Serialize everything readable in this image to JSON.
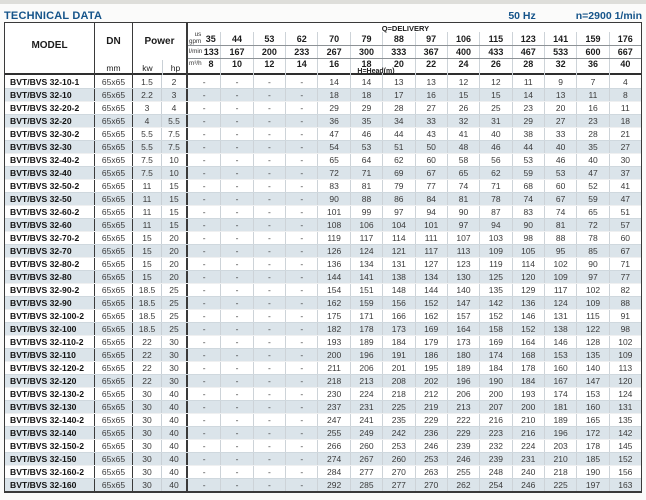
{
  "page": {
    "title": "TECHNICAL DATA",
    "frequency": "50 Hz",
    "speed": "n=2900 1/min"
  },
  "colors": {
    "accent": "#15548a",
    "row_shade": "#dbe4ea",
    "border_dark": "#3a3a3a",
    "border_light": "#cdd3d8"
  },
  "table": {
    "header": {
      "model_label": "MODEL",
      "dn_label": "DN",
      "dn_unit": "mm",
      "power_label": "Power",
      "power_units": [
        "kw",
        "hp"
      ],
      "delivery_label": "Q=DELIVERY",
      "head_label": "H=Head(m)",
      "flow_units": [
        "us\ngpm",
        "l/min",
        "m³/h"
      ],
      "gpm": [
        "35",
        "44",
        "53",
        "62",
        "70",
        "79",
        "88",
        "97",
        "106",
        "115",
        "123",
        "141",
        "159",
        "176"
      ],
      "lmin": [
        "133",
        "167",
        "200",
        "233",
        "267",
        "300",
        "333",
        "367",
        "400",
        "433",
        "467",
        "533",
        "600",
        "667"
      ],
      "m3h": [
        "8",
        "10",
        "12",
        "14",
        "16",
        "18",
        "20",
        "22",
        "24",
        "26",
        "28",
        "32",
        "36",
        "40"
      ]
    },
    "rows": [
      {
        "model": "BVT/BVS 32-10-1",
        "dn": "65x65",
        "kw": "1.5",
        "hp": "2",
        "heads": [
          "-",
          "-",
          "-",
          "-",
          "14",
          "14",
          "13",
          "13",
          "12",
          "12",
          "11",
          "9",
          "7",
          "4"
        ]
      },
      {
        "model": "BVT/BVS 32-10",
        "dn": "65x65",
        "kw": "2.2",
        "hp": "3",
        "heads": [
          "-",
          "-",
          "-",
          "-",
          "18",
          "18",
          "17",
          "16",
          "15",
          "15",
          "14",
          "13",
          "11",
          "8"
        ]
      },
      {
        "model": "BVT/BVS 32-20-2",
        "dn": "65x65",
        "kw": "3",
        "hp": "4",
        "heads": [
          "-",
          "-",
          "-",
          "-",
          "29",
          "29",
          "28",
          "27",
          "26",
          "25",
          "23",
          "20",
          "16",
          "11"
        ]
      },
      {
        "model": "BVT/BVS 32-20",
        "dn": "65x65",
        "kw": "4",
        "hp": "5.5",
        "heads": [
          "-",
          "-",
          "-",
          "-",
          "36",
          "35",
          "34",
          "33",
          "32",
          "31",
          "29",
          "27",
          "23",
          "18"
        ]
      },
      {
        "model": "BVT/BVS 32-30-2",
        "dn": "65x65",
        "kw": "5.5",
        "hp": "7.5",
        "heads": [
          "-",
          "-",
          "-",
          "-",
          "47",
          "46",
          "44",
          "43",
          "41",
          "40",
          "38",
          "33",
          "28",
          "21"
        ]
      },
      {
        "model": "BVT/BVS 32-30",
        "dn": "65x65",
        "kw": "5.5",
        "hp": "7.5",
        "heads": [
          "-",
          "-",
          "-",
          "-",
          "54",
          "53",
          "51",
          "50",
          "48",
          "46",
          "44",
          "40",
          "35",
          "27"
        ]
      },
      {
        "model": "BVT/BVS 32-40-2",
        "dn": "65x65",
        "kw": "7.5",
        "hp": "10",
        "heads": [
          "-",
          "-",
          "-",
          "-",
          "65",
          "64",
          "62",
          "60",
          "58",
          "56",
          "53",
          "46",
          "40",
          "30"
        ]
      },
      {
        "model": "BVT/BVS 32-40",
        "dn": "65x65",
        "kw": "7.5",
        "hp": "10",
        "heads": [
          "-",
          "-",
          "-",
          "-",
          "72",
          "71",
          "69",
          "67",
          "65",
          "62",
          "59",
          "53",
          "47",
          "37"
        ]
      },
      {
        "model": "BVT/BVS 32-50-2",
        "dn": "65x65",
        "kw": "11",
        "hp": "15",
        "heads": [
          "-",
          "-",
          "-",
          "-",
          "83",
          "81",
          "79",
          "77",
          "74",
          "71",
          "68",
          "60",
          "52",
          "41"
        ]
      },
      {
        "model": "BVT/BVS 32-50",
        "dn": "65x65",
        "kw": "11",
        "hp": "15",
        "heads": [
          "-",
          "-",
          "-",
          "-",
          "90",
          "88",
          "86",
          "84",
          "81",
          "78",
          "74",
          "67",
          "59",
          "47"
        ]
      },
      {
        "model": "BVT/BVS 32-60-2",
        "dn": "65x65",
        "kw": "11",
        "hp": "15",
        "heads": [
          "-",
          "-",
          "-",
          "-",
          "101",
          "99",
          "97",
          "94",
          "90",
          "87",
          "83",
          "74",
          "65",
          "51"
        ]
      },
      {
        "model": "BVT/BVS 32-60",
        "dn": "65x65",
        "kw": "11",
        "hp": "15",
        "heads": [
          "-",
          "-",
          "-",
          "-",
          "108",
          "106",
          "104",
          "101",
          "97",
          "94",
          "90",
          "81",
          "72",
          "57"
        ]
      },
      {
        "model": "BVT/BVS 32-70-2",
        "dn": "65x65",
        "kw": "15",
        "hp": "20",
        "heads": [
          "-",
          "-",
          "-",
          "-",
          "119",
          "117",
          "114",
          "111",
          "107",
          "103",
          "98",
          "88",
          "78",
          "60"
        ]
      },
      {
        "model": "BVT/BVS 32-70",
        "dn": "65x65",
        "kw": "15",
        "hp": "20",
        "heads": [
          "-",
          "-",
          "-",
          "-",
          "126",
          "124",
          "121",
          "117",
          "113",
          "109",
          "105",
          "95",
          "85",
          "67"
        ]
      },
      {
        "model": "BVT/BVS 32-80-2",
        "dn": "65x65",
        "kw": "15",
        "hp": "20",
        "heads": [
          "-",
          "-",
          "-",
          "-",
          "136",
          "134",
          "131",
          "127",
          "123",
          "119",
          "114",
          "102",
          "90",
          "71"
        ]
      },
      {
        "model": "BVT/BVS 32-80",
        "dn": "65x65",
        "kw": "15",
        "hp": "20",
        "heads": [
          "-",
          "-",
          "-",
          "-",
          "144",
          "141",
          "138",
          "134",
          "130",
          "125",
          "120",
          "109",
          "97",
          "77"
        ]
      },
      {
        "model": "BVT/BVS 32-90-2",
        "dn": "65x65",
        "kw": "18.5",
        "hp": "25",
        "heads": [
          "-",
          "-",
          "-",
          "-",
          "154",
          "151",
          "148",
          "144",
          "140",
          "135",
          "129",
          "117",
          "102",
          "82"
        ]
      },
      {
        "model": "BVT/BVS 32-90",
        "dn": "65x65",
        "kw": "18.5",
        "hp": "25",
        "heads": [
          "-",
          "-",
          "-",
          "-",
          "162",
          "159",
          "156",
          "152",
          "147",
          "142",
          "136",
          "124",
          "109",
          "88"
        ]
      },
      {
        "model": "BVT/BVS 32-100-2",
        "dn": "65x65",
        "kw": "18.5",
        "hp": "25",
        "heads": [
          "-",
          "-",
          "-",
          "-",
          "175",
          "171",
          "166",
          "162",
          "157",
          "152",
          "146",
          "131",
          "115",
          "91"
        ]
      },
      {
        "model": "BVT/BVS 32-100",
        "dn": "65x65",
        "kw": "18.5",
        "hp": "25",
        "heads": [
          "-",
          "-",
          "-",
          "-",
          "182",
          "178",
          "173",
          "169",
          "164",
          "158",
          "152",
          "138",
          "122",
          "98"
        ]
      },
      {
        "model": "BVT/BVS 32-110-2",
        "dn": "65x65",
        "kw": "22",
        "hp": "30",
        "heads": [
          "-",
          "-",
          "-",
          "-",
          "193",
          "189",
          "184",
          "179",
          "173",
          "169",
          "164",
          "146",
          "128",
          "102"
        ]
      },
      {
        "model": "BVT/BVS 32-110",
        "dn": "65x65",
        "kw": "22",
        "hp": "30",
        "heads": [
          "-",
          "-",
          "-",
          "-",
          "200",
          "196",
          "191",
          "186",
          "180",
          "174",
          "168",
          "153",
          "135",
          "109"
        ]
      },
      {
        "model": "BVT/BVS 32-120-2",
        "dn": "65x65",
        "kw": "22",
        "hp": "30",
        "heads": [
          "-",
          "-",
          "-",
          "-",
          "211",
          "206",
          "201",
          "195",
          "189",
          "184",
          "178",
          "160",
          "140",
          "113"
        ]
      },
      {
        "model": "BVT/BVS 32-120",
        "dn": "65x65",
        "kw": "22",
        "hp": "30",
        "heads": [
          "-",
          "-",
          "-",
          "-",
          "218",
          "213",
          "208",
          "202",
          "196",
          "190",
          "184",
          "167",
          "147",
          "120"
        ]
      },
      {
        "model": "BVT/BVS 32-130-2",
        "dn": "65x65",
        "kw": "30",
        "hp": "40",
        "heads": [
          "-",
          "-",
          "-",
          "-",
          "230",
          "224",
          "218",
          "212",
          "206",
          "200",
          "193",
          "174",
          "153",
          "124"
        ]
      },
      {
        "model": "BVT/BVS 32-130",
        "dn": "65x65",
        "kw": "30",
        "hp": "40",
        "heads": [
          "-",
          "-",
          "-",
          "-",
          "237",
          "231",
          "225",
          "219",
          "213",
          "207",
          "200",
          "181",
          "160",
          "131"
        ]
      },
      {
        "model": "BVT/BVS 32-140-2",
        "dn": "65x65",
        "kw": "30",
        "hp": "40",
        "heads": [
          "-",
          "-",
          "-",
          "-",
          "247",
          "241",
          "235",
          "229",
          "222",
          "216",
          "210",
          "189",
          "165",
          "135"
        ]
      },
      {
        "model": "BVT/BVS 32-140",
        "dn": "65x65",
        "kw": "30",
        "hp": "40",
        "heads": [
          "-",
          "-",
          "-",
          "-",
          "255",
          "249",
          "242",
          "236",
          "229",
          "223",
          "216",
          "196",
          "172",
          "142"
        ]
      },
      {
        "model": "BVT/BVS 32-150-2",
        "dn": "65x65",
        "kw": "30",
        "hp": "40",
        "heads": [
          "-",
          "-",
          "-",
          "-",
          "266",
          "260",
          "253",
          "246",
          "239",
          "232",
          "224",
          "203",
          "178",
          "145"
        ]
      },
      {
        "model": "BVT/BVS 32-150",
        "dn": "65x65",
        "kw": "30",
        "hp": "40",
        "heads": [
          "-",
          "-",
          "-",
          "-",
          "274",
          "267",
          "260",
          "253",
          "246",
          "239",
          "231",
          "210",
          "185",
          "152"
        ]
      },
      {
        "model": "BVT/BVS 32-160-2",
        "dn": "65x65",
        "kw": "30",
        "hp": "40",
        "heads": [
          "-",
          "-",
          "-",
          "-",
          "284",
          "277",
          "270",
          "263",
          "255",
          "248",
          "240",
          "218",
          "190",
          "156"
        ]
      },
      {
        "model": "BVT/BVS 32-160",
        "dn": "65x65",
        "kw": "30",
        "hp": "40",
        "heads": [
          "-",
          "-",
          "-",
          "-",
          "292",
          "285",
          "277",
          "270",
          "262",
          "254",
          "246",
          "225",
          "197",
          "163"
        ]
      }
    ]
  }
}
